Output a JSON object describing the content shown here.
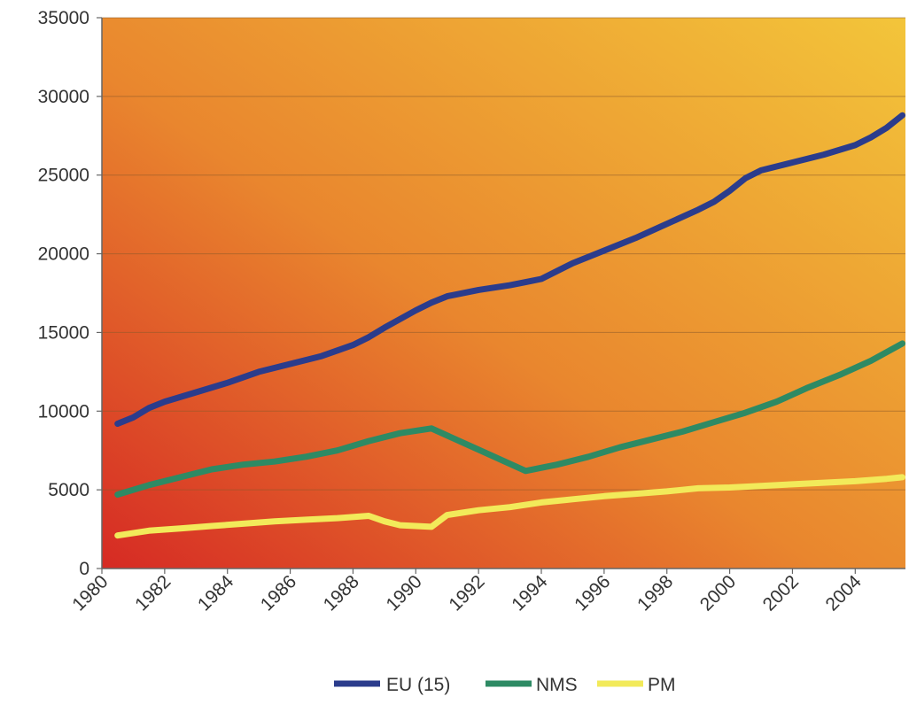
{
  "chart_data": {
    "type": "line",
    "title": "",
    "xlabel": "",
    "ylabel": "",
    "xlim": [
      1980,
      2005.6
    ],
    "ylim": [
      0,
      35000
    ],
    "yticks": [
      0,
      5000,
      10000,
      15000,
      20000,
      25000,
      30000,
      35000
    ],
    "xticks": [
      1980,
      1982,
      1984,
      1986,
      1988,
      1990,
      1992,
      1994,
      1996,
      1998,
      2000,
      2002,
      2004
    ],
    "grid": true,
    "legend_position": "bottom",
    "background": "orange-red gradient",
    "series": [
      {
        "name": "EU (15)",
        "color": "#2b3c8c",
        "x": [
          1980.5,
          1981,
          1981.5,
          1982,
          1983,
          1984,
          1985,
          1986,
          1987,
          1988,
          1988.5,
          1989,
          1990,
          1990.5,
          1991,
          1992,
          1993,
          1993.5,
          1994,
          1995,
          1996,
          1997,
          1998,
          1999,
          1999.5,
          2000,
          2000.5,
          2001,
          2002,
          2003,
          2004,
          2004.5,
          2005,
          2005.5
        ],
        "values": [
          9200,
          9600,
          10200,
          10600,
          11200,
          11800,
          12500,
          13000,
          13500,
          14200,
          14700,
          15300,
          16400,
          16900,
          17300,
          17700,
          18000,
          18200,
          18400,
          19400,
          20200,
          21000,
          21900,
          22800,
          23300,
          24000,
          24800,
          25300,
          25800,
          26300,
          26900,
          27400,
          28000,
          28800
        ]
      },
      {
        "name": "NMS",
        "color": "#2e8a64",
        "x": [
          1980.5,
          1981.5,
          1982.5,
          1983.5,
          1984.5,
          1985.5,
          1986.5,
          1987.5,
          1988.5,
          1989.5,
          1990.5,
          1991.5,
          1992.5,
          1993.5,
          1994.5,
          1995.5,
          1996.5,
          1997.5,
          1998.5,
          1999.5,
          2000.5,
          2001.5,
          2002.5,
          2003.5,
          2004.5,
          2005.5
        ],
        "values": [
          4700,
          5300,
          5800,
          6300,
          6600,
          6800,
          7100,
          7500,
          8100,
          8600,
          8900,
          8000,
          7100,
          6200,
          6600,
          7100,
          7700,
          8200,
          8700,
          9300,
          9900,
          10600,
          11500,
          12300,
          13200,
          14300
        ]
      },
      {
        "name": "PM",
        "color": "#f2ea5a",
        "x": [
          1980.5,
          1981.5,
          1982.5,
          1983.5,
          1984.5,
          1985.5,
          1986.5,
          1987.5,
          1988.5,
          1989,
          1989.5,
          1990,
          1990.5,
          1991,
          1992,
          1993,
          1994,
          1995,
          1996,
          1997,
          1998,
          1999,
          2000,
          2001,
          2002,
          2003,
          2004,
          2005,
          2005.5
        ],
        "values": [
          2100,
          2400,
          2550,
          2700,
          2850,
          3000,
          3100,
          3200,
          3350,
          3000,
          2750,
          2700,
          2650,
          3400,
          3700,
          3900,
          4200,
          4400,
          4600,
          4750,
          4900,
          5100,
          5150,
          5250,
          5350,
          5450,
          5550,
          5700,
          5800
        ]
      }
    ]
  }
}
